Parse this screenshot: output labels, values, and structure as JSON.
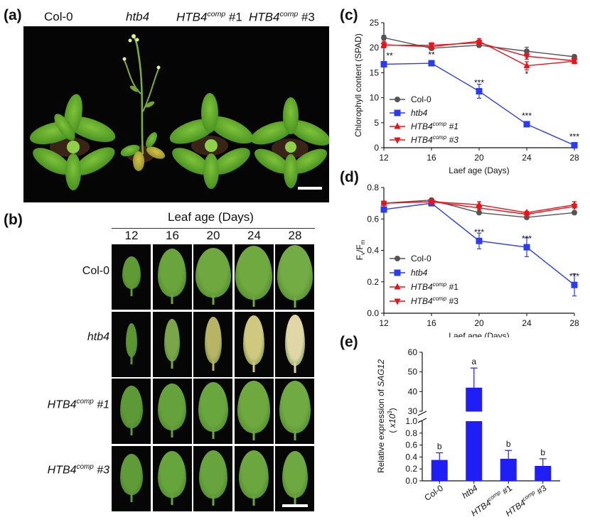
{
  "panels": {
    "a": "(a)",
    "b": "(b)",
    "c": "(c)",
    "d": "(d)",
    "e": "(e)"
  },
  "genotypes_top": {
    "col0": "Col-0",
    "htb4": "htb4",
    "comp_base": "HTB4",
    "comp_sup": "comp",
    "comp1_suffix": " #1",
    "comp3_suffix": " #3"
  },
  "panel_b": {
    "header": "Leaf age (Days)",
    "days": [
      "12",
      "16",
      "20",
      "24",
      "28"
    ],
    "rows": {
      "col0": "Col-0",
      "htb4": "htb4",
      "comp_base": "HTB4",
      "comp_sup": "comp",
      "comp1_suffix": " #1",
      "comp3_suffix": " #3"
    }
  },
  "chart_data": [
    {
      "type": "line",
      "panel": "c",
      "ylabel": "Chlorophyll content (SPAD)",
      "xlabel": "Laef age (Days)",
      "x": [
        12,
        16,
        20,
        24,
        28
      ],
      "xlim": [
        12,
        28
      ],
      "ylim": [
        0,
        25
      ],
      "yticks": [
        0,
        5,
        10,
        15,
        20,
        25
      ],
      "legend_position": "center-left",
      "series": [
        {
          "name": "Col-0",
          "color": "#555555",
          "marker": "circle",
          "values": [
            22.0,
            19.9,
            20.5,
            19.3,
            18.2
          ],
          "errors": [
            0.5,
            0.4,
            0.4,
            0.8,
            0.4
          ]
        },
        {
          "name": "htb4",
          "color": "#2b3bf0",
          "marker": "square",
          "values": [
            16.7,
            16.9,
            11.3,
            4.7,
            0.5
          ],
          "errors": [
            0.4,
            0.4,
            1.4,
            0.3,
            0.3
          ]
        },
        {
          "name": "HTB4comp #1",
          "color": "#e8141b",
          "marker": "triangle-up",
          "values": [
            20.6,
            20.2,
            21.3,
            16.4,
            17.3
          ],
          "errors": [
            0.6,
            0.5,
            0.5,
            0.8,
            0.5
          ]
        },
        {
          "name": "HTB4comp #3",
          "color": "#e8141b",
          "marker": "triangle-down",
          "values": [
            20.5,
            20.5,
            21.0,
            18.3,
            17.4
          ],
          "errors": [
            0.5,
            0.5,
            0.5,
            0.6,
            0.5
          ]
        }
      ],
      "annotations": [
        {
          "x": 12,
          "y": 16.7,
          "text": "**"
        },
        {
          "x": 16,
          "y": 16.9,
          "text": "**"
        },
        {
          "x": 20,
          "y": 11.3,
          "text": "***"
        },
        {
          "x": 24,
          "y": 16.4,
          "text": "*"
        },
        {
          "x": 24,
          "y": 4.7,
          "text": "***"
        },
        {
          "x": 28,
          "y": 0.5,
          "text": "***"
        }
      ]
    },
    {
      "type": "line",
      "panel": "d",
      "ylabel_base": "F",
      "ylabel_sub1": "v",
      "ylabel_mid": "/F",
      "ylabel_sub2": "m",
      "xlabel": "Laef age (Days)",
      "x": [
        12,
        16,
        20,
        24,
        28
      ],
      "xlim": [
        12,
        28
      ],
      "ylim": [
        0.0,
        0.8
      ],
      "yticks": [
        "0.0",
        "0.2",
        "0.4",
        "0.6",
        "0.8"
      ],
      "legend_position": "center-left",
      "series": [
        {
          "name": "Col-0",
          "color": "#555555",
          "marker": "circle",
          "values": [
            0.7,
            0.72,
            0.64,
            0.61,
            0.64
          ],
          "errors": [
            0.01,
            0.01,
            0.01,
            0.01,
            0.01
          ]
        },
        {
          "name": "htb4",
          "color": "#2b3bf0",
          "marker": "square",
          "values": [
            0.66,
            0.7,
            0.46,
            0.42,
            0.18
          ],
          "errors": [
            0.01,
            0.01,
            0.05,
            0.06,
            0.07
          ]
        },
        {
          "name": "HTB4comp #1",
          "color": "#e8141b",
          "marker": "triangle-up",
          "values": [
            0.7,
            0.71,
            0.69,
            0.64,
            0.69
          ],
          "errors": [
            0.01,
            0.01,
            0.02,
            0.01,
            0.02
          ]
        },
        {
          "name": "HTB4comp #3",
          "color": "#e8141b",
          "marker": "triangle-down",
          "values": [
            0.7,
            0.71,
            0.67,
            0.63,
            0.68
          ],
          "errors": [
            0.01,
            0.01,
            0.01,
            0.01,
            0.01
          ]
        }
      ],
      "annotations": [
        {
          "x": 20,
          "y": 0.46,
          "text": "***"
        },
        {
          "x": 24,
          "y": 0.42,
          "text": "***"
        },
        {
          "x": 28,
          "y": 0.18,
          "text": "***"
        }
      ]
    },
    {
      "type": "bar",
      "panel": "e",
      "ylabel_prefix": "Relative expression of ",
      "ylabel_gene": "SAG12",
      "ylabel_unit_open": "(",
      "ylabel_unit_base": "x10",
      "ylabel_unit_sup": "3",
      "ylabel_unit_close": ")",
      "color": "#1f1ff5",
      "broken_axis": true,
      "lower_range": [
        0.0,
        1.0
      ],
      "upper_range": [
        30,
        60
      ],
      "lower_ticks": [
        "0.0",
        "0.2",
        "0.4",
        "0.6",
        "0.8",
        "1.0"
      ],
      "upper_ticks": [
        "30",
        "40",
        "50",
        "60"
      ],
      "categories": [
        "Col-0",
        "htb4",
        "HTB4comp #1",
        "HTB4comp #3"
      ],
      "category_labels": [
        {
          "base": "Col-0",
          "sup": "",
          "suffix": ""
        },
        {
          "base": "htb4",
          "sup": "",
          "suffix": ""
        },
        {
          "base": "HTB4",
          "sup": "comp",
          "suffix": " #1"
        },
        {
          "base": "HTB4",
          "sup": "comp",
          "suffix": " #3"
        }
      ],
      "values": [
        0.35,
        42.0,
        0.37,
        0.25
      ],
      "errors": [
        0.12,
        10.0,
        0.14,
        0.12
      ],
      "letters": [
        "b",
        "a",
        "b",
        "b"
      ]
    }
  ],
  "legend_labels": {
    "col0": "Col-0",
    "htb4": "htb4",
    "comp_base": "HTB4",
    "comp_sup": "comp",
    "comp1_suffix": " #1",
    "comp3_suffix": " #3"
  }
}
